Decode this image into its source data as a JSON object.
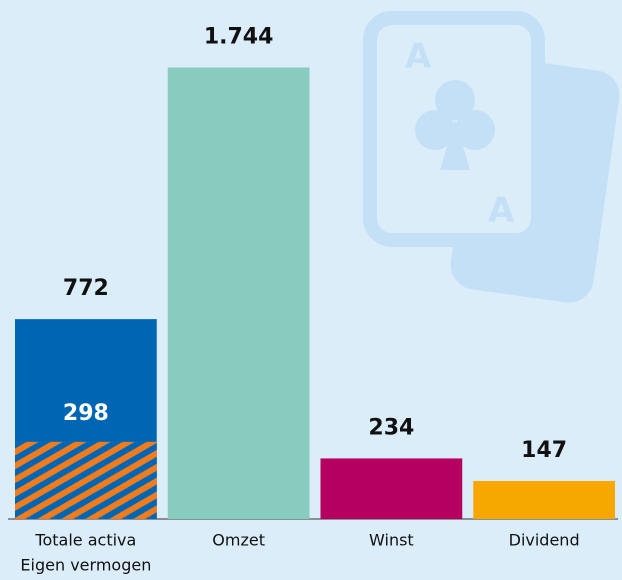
{
  "chart_data": {
    "type": "bar",
    "categories": [
      "Totale activa",
      "Omzet",
      "Winst",
      "Dividend"
    ],
    "values": [
      772,
      1744,
      234,
      147
    ],
    "value_labels": [
      "772",
      "1.744",
      "234",
      "147"
    ],
    "colors": [
      "#0066b3",
      "#88ccc0",
      "#b5005f",
      "#f7a800"
    ],
    "inner": {
      "label": "Eigen vermogen",
      "value": 298,
      "color": "#f07c1e"
    },
    "ylim": [
      0,
      1800
    ]
  }
}
